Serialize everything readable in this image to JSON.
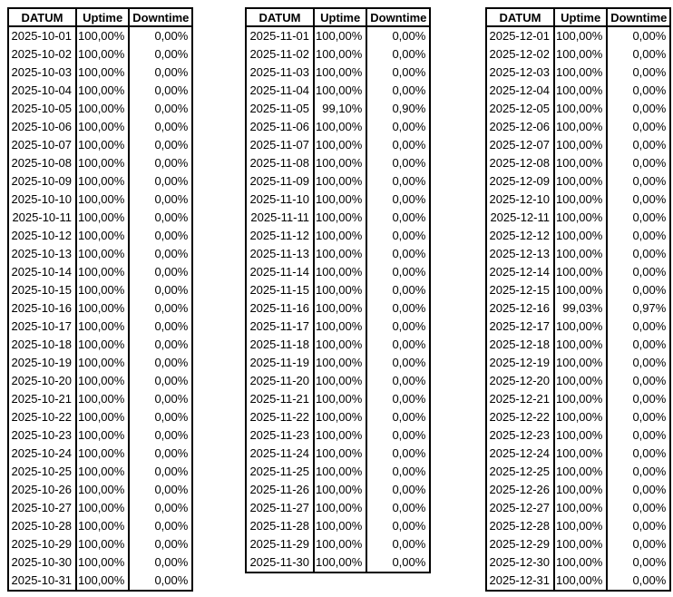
{
  "tables": [
    {
      "headers": [
        "DATUM",
        "Uptime",
        "Downtime"
      ],
      "rows": [
        {
          "date": "2025-10-01",
          "uptime": "100,00%",
          "downtime": "0,00%"
        },
        {
          "date": "2025-10-02",
          "uptime": "100,00%",
          "downtime": "0,00%"
        },
        {
          "date": "2025-10-03",
          "uptime": "100,00%",
          "downtime": "0,00%"
        },
        {
          "date": "2025-10-04",
          "uptime": "100,00%",
          "downtime": "0,00%"
        },
        {
          "date": "2025-10-05",
          "uptime": "100,00%",
          "downtime": "0,00%"
        },
        {
          "date": "2025-10-06",
          "uptime": "100,00%",
          "downtime": "0,00%"
        },
        {
          "date": "2025-10-07",
          "uptime": "100,00%",
          "downtime": "0,00%"
        },
        {
          "date": "2025-10-08",
          "uptime": "100,00%",
          "downtime": "0,00%"
        },
        {
          "date": "2025-10-09",
          "uptime": "100,00%",
          "downtime": "0,00%"
        },
        {
          "date": "2025-10-10",
          "uptime": "100,00%",
          "downtime": "0,00%"
        },
        {
          "date": "2025-10-11",
          "uptime": "100,00%",
          "downtime": "0,00%"
        },
        {
          "date": "2025-10-12",
          "uptime": "100,00%",
          "downtime": "0,00%"
        },
        {
          "date": "2025-10-13",
          "uptime": "100,00%",
          "downtime": "0,00%"
        },
        {
          "date": "2025-10-14",
          "uptime": "100,00%",
          "downtime": "0,00%"
        },
        {
          "date": "2025-10-15",
          "uptime": "100,00%",
          "downtime": "0,00%"
        },
        {
          "date": "2025-10-16",
          "uptime": "100,00%",
          "downtime": "0,00%"
        },
        {
          "date": "2025-10-17",
          "uptime": "100,00%",
          "downtime": "0,00%"
        },
        {
          "date": "2025-10-18",
          "uptime": "100,00%",
          "downtime": "0,00%"
        },
        {
          "date": "2025-10-19",
          "uptime": "100,00%",
          "downtime": "0,00%"
        },
        {
          "date": "2025-10-20",
          "uptime": "100,00%",
          "downtime": "0,00%"
        },
        {
          "date": "2025-10-21",
          "uptime": "100,00%",
          "downtime": "0,00%"
        },
        {
          "date": "2025-10-22",
          "uptime": "100,00%",
          "downtime": "0,00%"
        },
        {
          "date": "2025-10-23",
          "uptime": "100,00%",
          "downtime": "0,00%"
        },
        {
          "date": "2025-10-24",
          "uptime": "100,00%",
          "downtime": "0,00%"
        },
        {
          "date": "2025-10-25",
          "uptime": "100,00%",
          "downtime": "0,00%"
        },
        {
          "date": "2025-10-26",
          "uptime": "100,00%",
          "downtime": "0,00%"
        },
        {
          "date": "2025-10-27",
          "uptime": "100,00%",
          "downtime": "0,00%"
        },
        {
          "date": "2025-10-28",
          "uptime": "100,00%",
          "downtime": "0,00%"
        },
        {
          "date": "2025-10-29",
          "uptime": "100,00%",
          "downtime": "0,00%"
        },
        {
          "date": "2025-10-30",
          "uptime": "100,00%",
          "downtime": "0,00%"
        },
        {
          "date": "2025-10-31",
          "uptime": "100,00%",
          "downtime": "0,00%"
        }
      ]
    },
    {
      "headers": [
        "DATUM",
        "Uptime",
        "Downtime"
      ],
      "rows": [
        {
          "date": "2025-11-01",
          "uptime": "100,00%",
          "downtime": "0,00%"
        },
        {
          "date": "2025-11-02",
          "uptime": "100,00%",
          "downtime": "0,00%"
        },
        {
          "date": "2025-11-03",
          "uptime": "100,00%",
          "downtime": "0,00%"
        },
        {
          "date": "2025-11-04",
          "uptime": "100,00%",
          "downtime": "0,00%"
        },
        {
          "date": "2025-11-05",
          "uptime": "99,10%",
          "downtime": "0,90%"
        },
        {
          "date": "2025-11-06",
          "uptime": "100,00%",
          "downtime": "0,00%"
        },
        {
          "date": "2025-11-07",
          "uptime": "100,00%",
          "downtime": "0,00%"
        },
        {
          "date": "2025-11-08",
          "uptime": "100,00%",
          "downtime": "0,00%"
        },
        {
          "date": "2025-11-09",
          "uptime": "100,00%",
          "downtime": "0,00%"
        },
        {
          "date": "2025-11-10",
          "uptime": "100,00%",
          "downtime": "0,00%"
        },
        {
          "date": "2025-11-11",
          "uptime": "100,00%",
          "downtime": "0,00%"
        },
        {
          "date": "2025-11-12",
          "uptime": "100,00%",
          "downtime": "0,00%"
        },
        {
          "date": "2025-11-13",
          "uptime": "100,00%",
          "downtime": "0,00%"
        },
        {
          "date": "2025-11-14",
          "uptime": "100,00%",
          "downtime": "0,00%"
        },
        {
          "date": "2025-11-15",
          "uptime": "100,00%",
          "downtime": "0,00%"
        },
        {
          "date": "2025-11-16",
          "uptime": "100,00%",
          "downtime": "0,00%"
        },
        {
          "date": "2025-11-17",
          "uptime": "100,00%",
          "downtime": "0,00%"
        },
        {
          "date": "2025-11-18",
          "uptime": "100,00%",
          "downtime": "0,00%"
        },
        {
          "date": "2025-11-19",
          "uptime": "100,00%",
          "downtime": "0,00%"
        },
        {
          "date": "2025-11-20",
          "uptime": "100,00%",
          "downtime": "0,00%"
        },
        {
          "date": "2025-11-21",
          "uptime": "100,00%",
          "downtime": "0,00%"
        },
        {
          "date": "2025-11-22",
          "uptime": "100,00%",
          "downtime": "0,00%"
        },
        {
          "date": "2025-11-23",
          "uptime": "100,00%",
          "downtime": "0,00%"
        },
        {
          "date": "2025-11-24",
          "uptime": "100,00%",
          "downtime": "0,00%"
        },
        {
          "date": "2025-11-25",
          "uptime": "100,00%",
          "downtime": "0,00%"
        },
        {
          "date": "2025-11-26",
          "uptime": "100,00%",
          "downtime": "0,00%"
        },
        {
          "date": "2025-11-27",
          "uptime": "100,00%",
          "downtime": "0,00%"
        },
        {
          "date": "2025-11-28",
          "uptime": "100,00%",
          "downtime": "0,00%"
        },
        {
          "date": "2025-11-29",
          "uptime": "100,00%",
          "downtime": "0,00%"
        },
        {
          "date": "2025-11-30",
          "uptime": "100,00%",
          "downtime": "0,00%"
        }
      ]
    },
    {
      "headers": [
        "DATUM",
        "Uptime",
        "Downtime"
      ],
      "rows": [
        {
          "date": "2025-12-01",
          "uptime": "100,00%",
          "downtime": "0,00%"
        },
        {
          "date": "2025-12-02",
          "uptime": "100,00%",
          "downtime": "0,00%"
        },
        {
          "date": "2025-12-03",
          "uptime": "100,00%",
          "downtime": "0,00%"
        },
        {
          "date": "2025-12-04",
          "uptime": "100,00%",
          "downtime": "0,00%"
        },
        {
          "date": "2025-12-05",
          "uptime": "100,00%",
          "downtime": "0,00%"
        },
        {
          "date": "2025-12-06",
          "uptime": "100,00%",
          "downtime": "0,00%"
        },
        {
          "date": "2025-12-07",
          "uptime": "100,00%",
          "downtime": "0,00%"
        },
        {
          "date": "2025-12-08",
          "uptime": "100,00%",
          "downtime": "0,00%"
        },
        {
          "date": "2025-12-09",
          "uptime": "100,00%",
          "downtime": "0,00%"
        },
        {
          "date": "2025-12-10",
          "uptime": "100,00%",
          "downtime": "0,00%"
        },
        {
          "date": "2025-12-11",
          "uptime": "100,00%",
          "downtime": "0,00%"
        },
        {
          "date": "2025-12-12",
          "uptime": "100,00%",
          "downtime": "0,00%"
        },
        {
          "date": "2025-12-13",
          "uptime": "100,00%",
          "downtime": "0,00%"
        },
        {
          "date": "2025-12-14",
          "uptime": "100,00%",
          "downtime": "0,00%"
        },
        {
          "date": "2025-12-15",
          "uptime": "100,00%",
          "downtime": "0,00%"
        },
        {
          "date": "2025-12-16",
          "uptime": "99,03%",
          "downtime": "0,97%"
        },
        {
          "date": "2025-12-17",
          "uptime": "100,00%",
          "downtime": "0,00%"
        },
        {
          "date": "2025-12-18",
          "uptime": "100,00%",
          "downtime": "0,00%"
        },
        {
          "date": "2025-12-19",
          "uptime": "100,00%",
          "downtime": "0,00%"
        },
        {
          "date": "2025-12-20",
          "uptime": "100,00%",
          "downtime": "0,00%"
        },
        {
          "date": "2025-12-21",
          "uptime": "100,00%",
          "downtime": "0,00%"
        },
        {
          "date": "2025-12-22",
          "uptime": "100,00%",
          "downtime": "0,00%"
        },
        {
          "date": "2025-12-23",
          "uptime": "100,00%",
          "downtime": "0,00%"
        },
        {
          "date": "2025-12-24",
          "uptime": "100,00%",
          "downtime": "0,00%"
        },
        {
          "date": "2025-12-25",
          "uptime": "100,00%",
          "downtime": "0,00%"
        },
        {
          "date": "2025-12-26",
          "uptime": "100,00%",
          "downtime": "0,00%"
        },
        {
          "date": "2025-12-27",
          "uptime": "100,00%",
          "downtime": "0,00%"
        },
        {
          "date": "2025-12-28",
          "uptime": "100,00%",
          "downtime": "0,00%"
        },
        {
          "date": "2025-12-29",
          "uptime": "100,00%",
          "downtime": "0,00%"
        },
        {
          "date": "2025-12-30",
          "uptime": "100,00%",
          "downtime": "0,00%"
        },
        {
          "date": "2025-12-31",
          "uptime": "100,00%",
          "downtime": "0,00%"
        }
      ]
    }
  ]
}
